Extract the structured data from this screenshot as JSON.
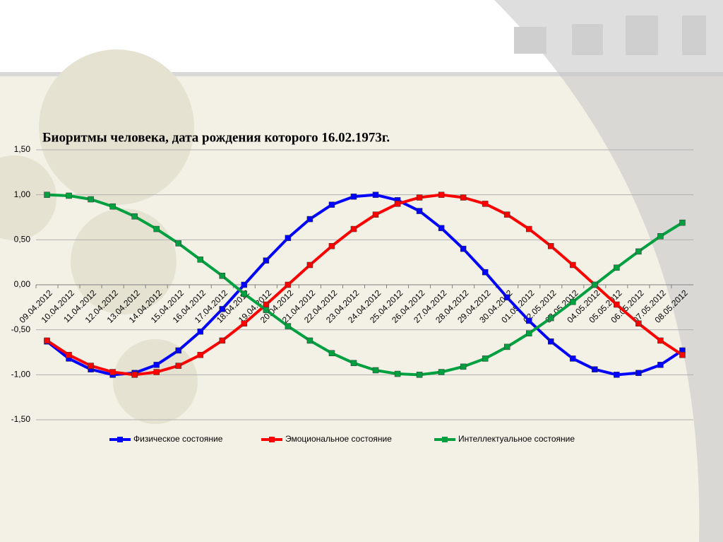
{
  "chart_data": {
    "type": "line",
    "title": "Биоритмы человека, дата рождения которого 16.02.1973г.",
    "categories": [
      "09.04.2012",
      "10.04.2012",
      "11.04.2012",
      "12.04.2012",
      "13.04.2012",
      "14.04.2012",
      "15.04.2012",
      "16.04.2012",
      "17.04.2012",
      "18.04.2012",
      "19.04.2012",
      "20.04.2012",
      "21.04.2012",
      "22.04.2012",
      "23.04.2012",
      "24.04.2012",
      "25.04.2012",
      "26.04.2012",
      "27.04.2012",
      "28.04.2012",
      "29.04.2012",
      "30.04.2012",
      "01.05.2012",
      "02.05.2012",
      "03.05.2012",
      "04.05.2012",
      "05.05.2012",
      "06.05.2012",
      "07.05.2012",
      "08.05.2012"
    ],
    "series": [
      {
        "name": "Физическое состояние",
        "color": "#0000ff",
        "values": [
          -0.63,
          -0.82,
          -0.94,
          -1.0,
          -0.98,
          -0.89,
          -0.73,
          -0.52,
          -0.27,
          0,
          0.27,
          0.52,
          0.73,
          0.89,
          0.98,
          1.0,
          0.94,
          0.82,
          0.63,
          0.4,
          0.14,
          -0.14,
          -0.4,
          -0.63,
          -0.82,
          -0.94,
          -1.0,
          -0.98,
          -0.89,
          -0.73
        ]
      },
      {
        "name": "Эмоциональное состояние",
        "color": "#ff0000",
        "values": [
          -0.62,
          -0.78,
          -0.9,
          -0.97,
          -1.0,
          -0.97,
          -0.9,
          -0.78,
          -0.62,
          -0.43,
          -0.22,
          0,
          0.22,
          0.43,
          0.62,
          0.78,
          0.9,
          0.97,
          1.0,
          0.97,
          0.9,
          0.78,
          0.62,
          0.43,
          0.22,
          0,
          -0.22,
          -0.43,
          -0.62,
          -0.78
        ]
      },
      {
        "name": "Интеллектуальное состояние",
        "color": "#00a040",
        "values": [
          1.0,
          0.99,
          0.95,
          0.87,
          0.76,
          0.62,
          0.46,
          0.28,
          0.1,
          -0.1,
          -0.28,
          -0.46,
          -0.62,
          -0.76,
          -0.87,
          -0.95,
          -0.99,
          -1.0,
          -0.97,
          -0.91,
          -0.82,
          -0.69,
          -0.54,
          -0.37,
          -0.19,
          0,
          0.19,
          0.37,
          0.54,
          0.69
        ]
      }
    ],
    "ylim": [
      -1.5,
      1.5
    ],
    "yticks": [
      {
        "value": -1.5,
        "label": "-1,50"
      },
      {
        "value": -1,
        "label": "-1,00"
      },
      {
        "value": -0.5,
        "label": "-0,50"
      },
      {
        "value": 0,
        "label": "0,00"
      },
      {
        "value": 0.5,
        "label": "0,50"
      },
      {
        "value": 1,
        "label": "1,00"
      },
      {
        "value": 1.5,
        "label": "1,50"
      }
    ],
    "grid": true,
    "legend": "bottom"
  }
}
